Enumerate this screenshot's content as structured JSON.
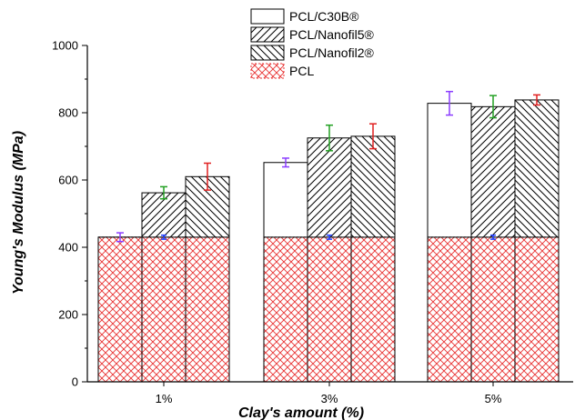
{
  "chart_data": {
    "type": "bar",
    "title": "",
    "xlabel": "Clay's amount (%)",
    "ylabel": "Young's Modulus (MPa)",
    "ylim": [
      0,
      1000
    ],
    "yticks": [
      0,
      200,
      400,
      600,
      800,
      1000
    ],
    "categories": [
      "1%",
      "3%",
      "5%"
    ],
    "legend_position": "top",
    "series": [
      {
        "name": "PCL/C30B®",
        "pattern": "none",
        "values": [
          430,
          652,
          828
        ],
        "errors": [
          13,
          13,
          35
        ],
        "error_color": "#8B3DFF"
      },
      {
        "name": "PCL/Nanofil5®",
        "pattern": "forward-hatch",
        "values": [
          562,
          725,
          818
        ],
        "errors": [
          18,
          38,
          33
        ],
        "error_color": "#22A022"
      },
      {
        "name": "PCL/Nanofil2®",
        "pattern": "back-hatch",
        "values": [
          610,
          730,
          838
        ],
        "errors": [
          40,
          37,
          15
        ],
        "error_color": "#E02020"
      }
    ],
    "baseline": {
      "name": "PCL",
      "pattern": "red-crosshatch",
      "value": 430,
      "error": 6,
      "error_color": "#1E3CFF",
      "color": "#E83030"
    }
  }
}
